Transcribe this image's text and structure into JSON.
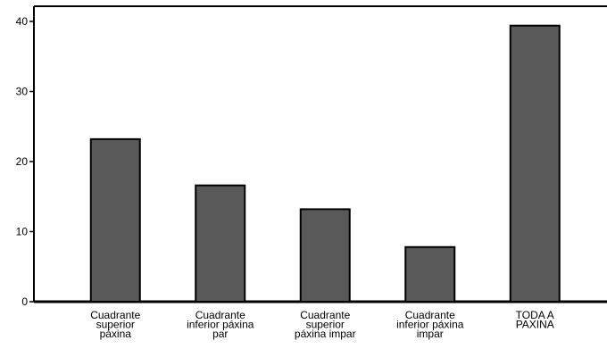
{
  "chart_data": {
    "type": "bar",
    "categories": [
      [
        "Cuadrante",
        "superior",
        "páxina"
      ],
      [
        "Cuadrante",
        "inferior páxina",
        "par"
      ],
      [
        "Cuadrante",
        "superior",
        "páxina impar"
      ],
      [
        "Cuadrante",
        "inferior páxina",
        "impar"
      ],
      [
        "TODA A",
        "PAXINA"
      ]
    ],
    "values": [
      23.2,
      16.6,
      13.2,
      7.8,
      39.4
    ],
    "yticks": [
      0,
      10,
      20,
      30,
      40
    ],
    "ylim": [
      0,
      40
    ],
    "grid": false,
    "bar_color": "#595959",
    "bar_edge_color": "#000000"
  }
}
